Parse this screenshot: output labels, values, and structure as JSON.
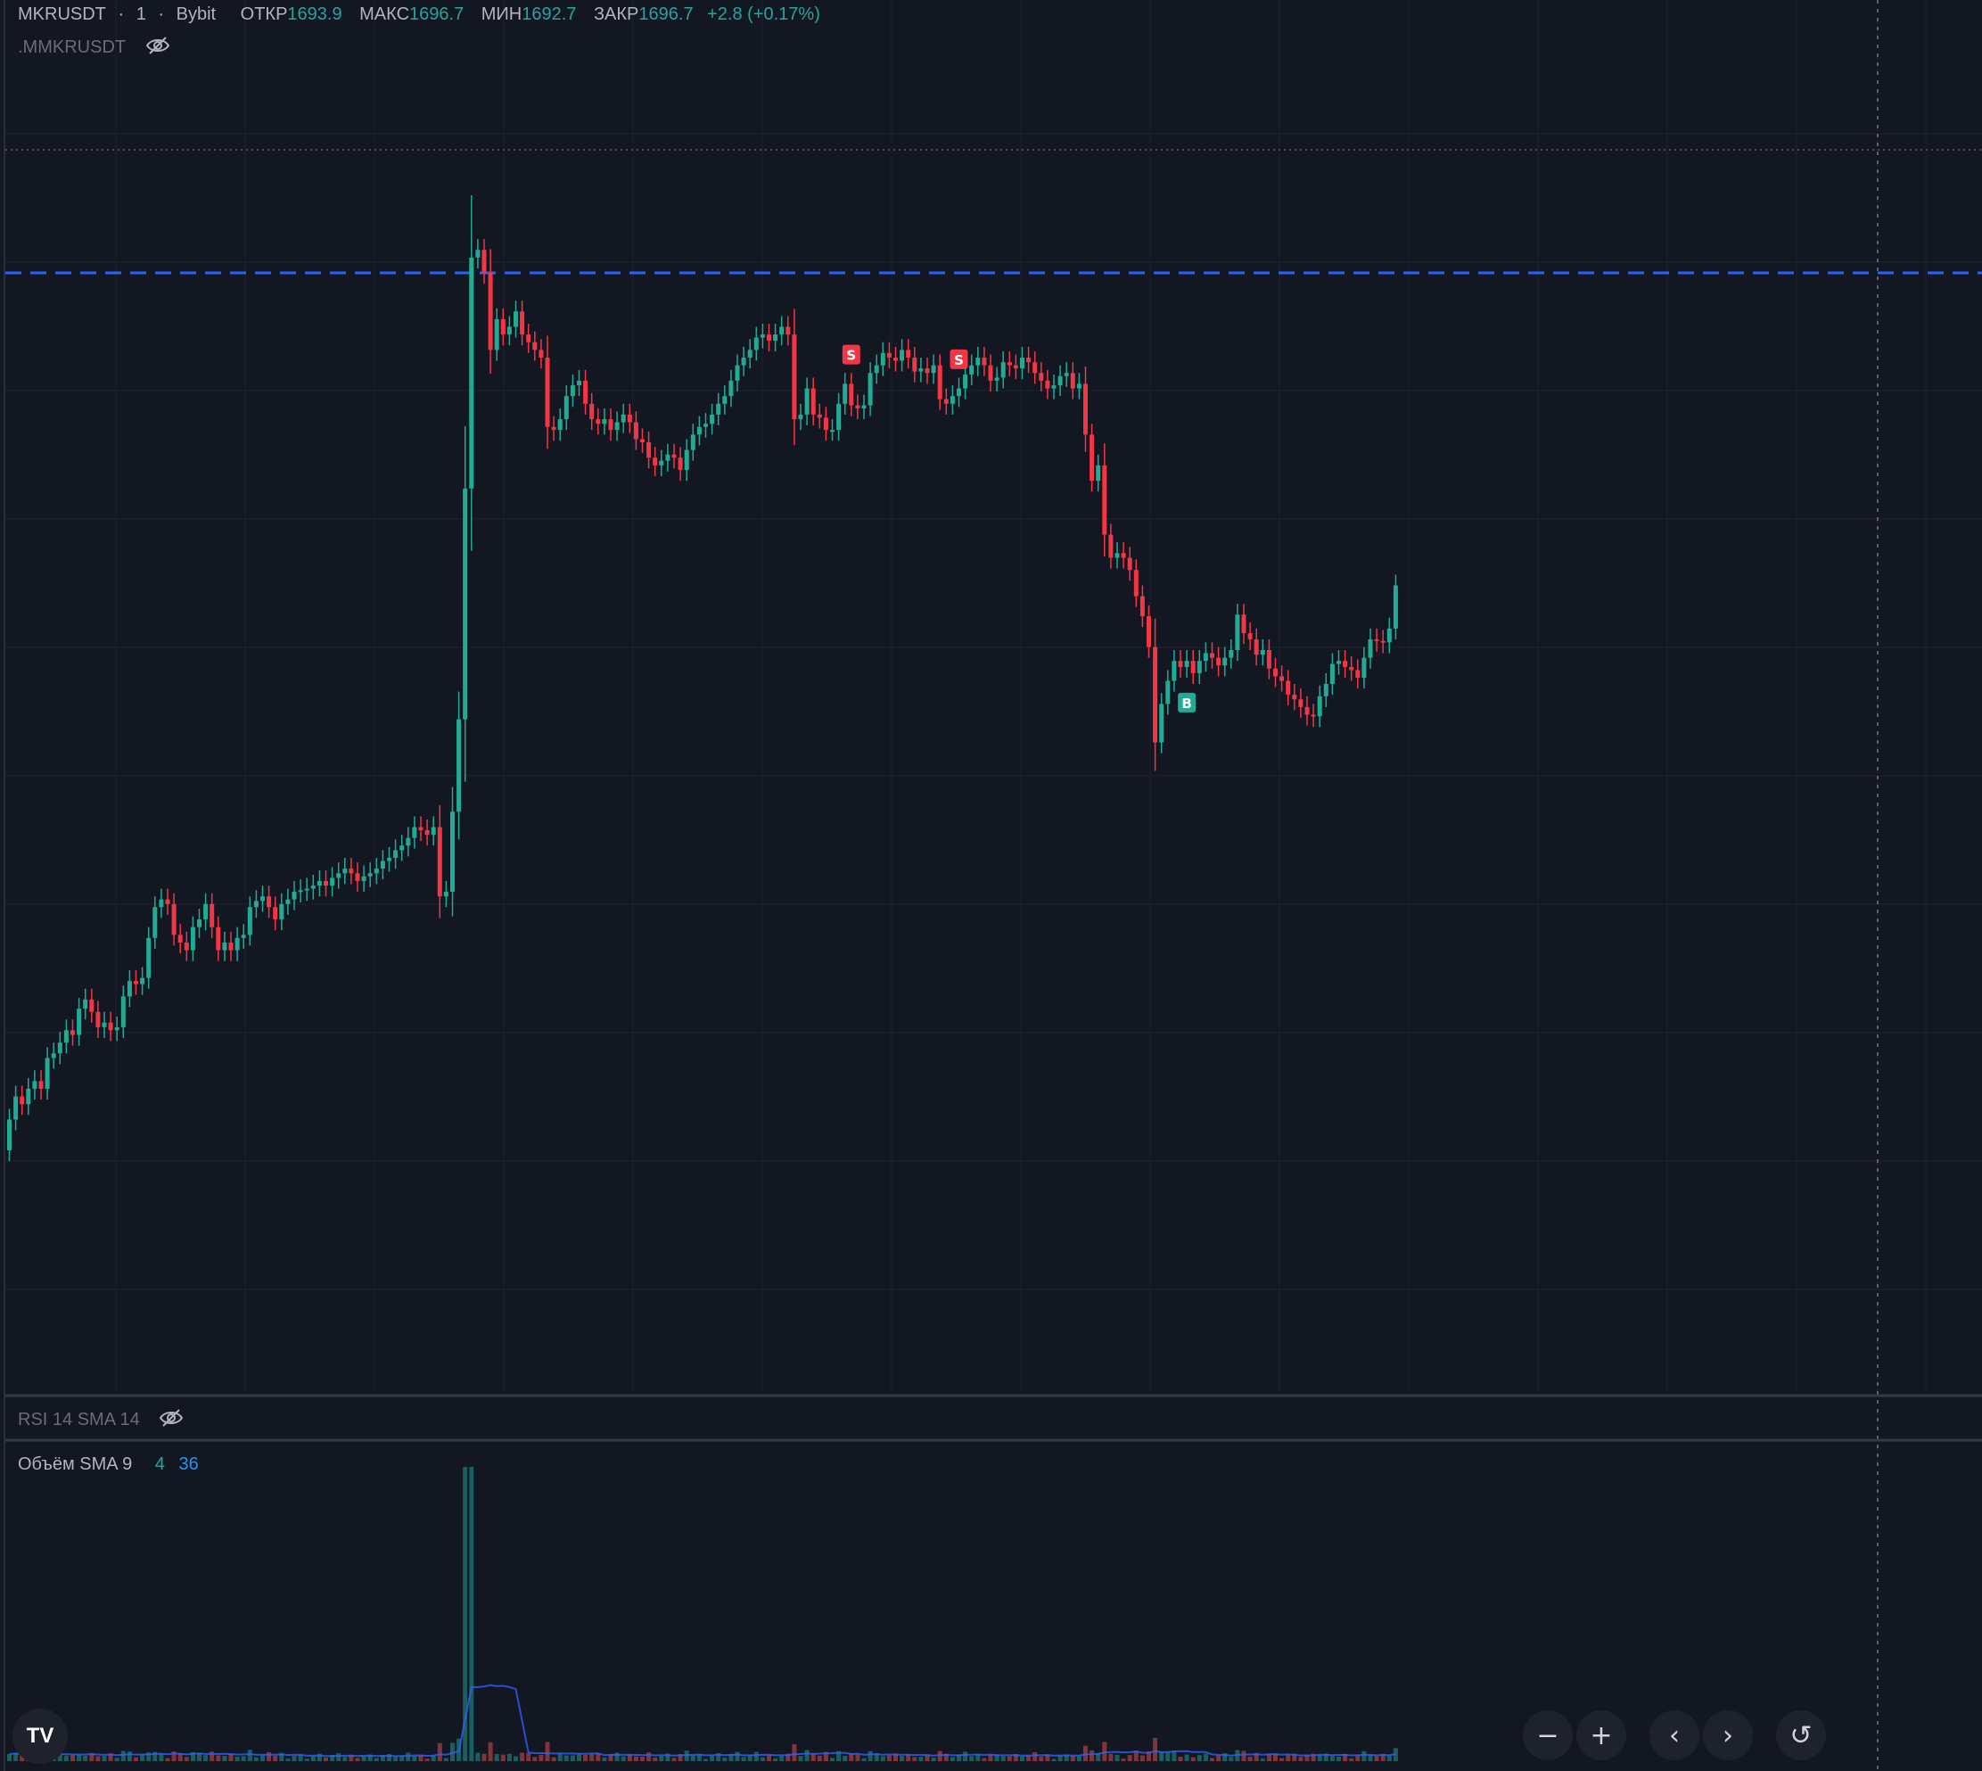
{
  "header": {
    "symbol": "MKRUSDT",
    "sep1": "·",
    "interval": "1",
    "sep2": "·",
    "exchange": "Bybit",
    "open_label": "ОТКР",
    "open_value": "1693.9",
    "high_label": "МАКС",
    "high_value": "1696.7",
    "low_label": "МИН",
    "low_value": "1692.7",
    "close_label": "ЗАКР",
    "close_value": "1696.7",
    "change": "+2.8 (+0.17%)",
    "secondary_symbol": ".MMKRUSDT"
  },
  "indicators": {
    "rsi_label": "RSI 14 SMA 14",
    "volume_label": "Объём SMA 9",
    "volume_value": "4",
    "volume_sma_value": "36"
  },
  "markers": [
    {
      "text": "S",
      "type": "sell",
      "bar_index": 133
    },
    {
      "text": "S",
      "type": "sell",
      "bar_index": 150
    },
    {
      "text": "B",
      "type": "buy",
      "bar_index": 186
    }
  ],
  "controls": {
    "zoom_out": "−",
    "zoom_in": "+",
    "scroll_left": "‹",
    "scroll_right": "›",
    "reset": "↺",
    "logo": "TV"
  },
  "colors": {
    "background": "#131722",
    "up": "#26a69a",
    "down": "#ef5350",
    "up_candle": "#22ab94",
    "down_candle": "#f23645",
    "sma_line": "#2962ff",
    "price_line": "#2962ff",
    "grid": "#1e222d"
  },
  "chart_data": {
    "type": "candlestick",
    "close": [
      1662.0,
      1663.5,
      1663.0,
      1664.0,
      1664.5,
      1664.0,
      1666.0,
      1666.3,
      1667.0,
      1667.8,
      1667.5,
      1669.2,
      1669.8,
      1669.0,
      1668.0,
      1668.3,
      1667.8,
      1668.0,
      1670.0,
      1671.0,
      1670.8,
      1671.2,
      1673.8,
      1675.8,
      1676.3,
      1676.0,
      1674.0,
      1673.5,
      1673.0,
      1674.5,
      1675.0,
      1676.0,
      1674.5,
      1673.0,
      1673.5,
      1673.0,
      1673.8,
      1674.0,
      1675.8,
      1676.2,
      1676.5,
      1675.8,
      1675.0,
      1676.0,
      1676.3,
      1676.8,
      1676.9,
      1677.0,
      1677.2,
      1677.5,
      1677.2,
      1677.7,
      1678.0,
      1678.3,
      1678.0,
      1677.5,
      1677.8,
      1678.0,
      1678.3,
      1678.8,
      1679.0,
      1679.5,
      1679.8,
      1680.3,
      1681.0,
      1680.8,
      1680.5,
      1681.0,
      1676.5,
      1676.8,
      1682.0,
      1688.0,
      1703.0,
      1718.0,
      1718.5,
      1717.0,
      1712.0,
      1714.0,
      1713.0,
      1713.5,
      1714.5,
      1713.0,
      1712.5,
      1712.0,
      1711.5,
      1707.0,
      1706.8,
      1707.5,
      1709.0,
      1709.7,
      1710.0,
      1708.5,
      1707.5,
      1707.2,
      1707.5,
      1706.8,
      1707.3,
      1707.8,
      1707.3,
      1706.2,
      1706.0,
      1705.0,
      1704.5,
      1704.8,
      1705.2,
      1705.0,
      1704.2,
      1705.5,
      1706.5,
      1707.0,
      1707.2,
      1707.8,
      1708.5,
      1709.0,
      1710.0,
      1711.0,
      1711.5,
      1712.0,
      1712.8,
      1713.0,
      1712.6,
      1713.0,
      1713.5,
      1713.0,
      1707.5,
      1707.8,
      1709.5,
      1707.8,
      1707.6,
      1706.8,
      1706.8,
      1708.5,
      1709.8,
      1708.4,
      1708.2,
      1708.4,
      1710.5,
      1711.0,
      1711.8,
      1711.5,
      1711.3,
      1712.0,
      1711.5,
      1710.6,
      1710.8,
      1710.5,
      1711.0,
      1708.8,
      1708.5,
      1709.0,
      1709.5,
      1710.4,
      1711.0,
      1711.5,
      1711.0,
      1710.0,
      1710.2,
      1711.2,
      1711.0,
      1710.8,
      1711.5,
      1711.2,
      1710.5,
      1710.0,
      1709.5,
      1709.7,
      1710.3,
      1710.5,
      1709.5,
      1709.8,
      1706.5,
      1703.5,
      1704.5,
      1700.0,
      1698.5,
      1698.8,
      1698.5,
      1697.7,
      1696.0,
      1694.7,
      1692.7,
      1686.5,
      1689.0,
      1690.5,
      1691.8,
      1691.4,
      1691.8,
      1691.0,
      1691.8,
      1692.3,
      1692.0,
      1691.5,
      1692.0,
      1692.5,
      1694.8,
      1693.6,
      1693.2,
      1692.2,
      1692.5,
      1691.3,
      1690.8,
      1690.5,
      1689.6,
      1689.3,
      1688.8,
      1688.3,
      1688.2,
      1689.5,
      1690.3,
      1691.6,
      1691.8,
      1691.4,
      1691.2,
      1690.7,
      1692.0,
      1693.2,
      1693.1,
      1693.0,
      1693.9,
      1696.7
    ],
    "volume_note": "volume bars follow each candle's direction",
    "price_line_note": "horizontal dashed price line near the session high",
    "grid": true
  }
}
